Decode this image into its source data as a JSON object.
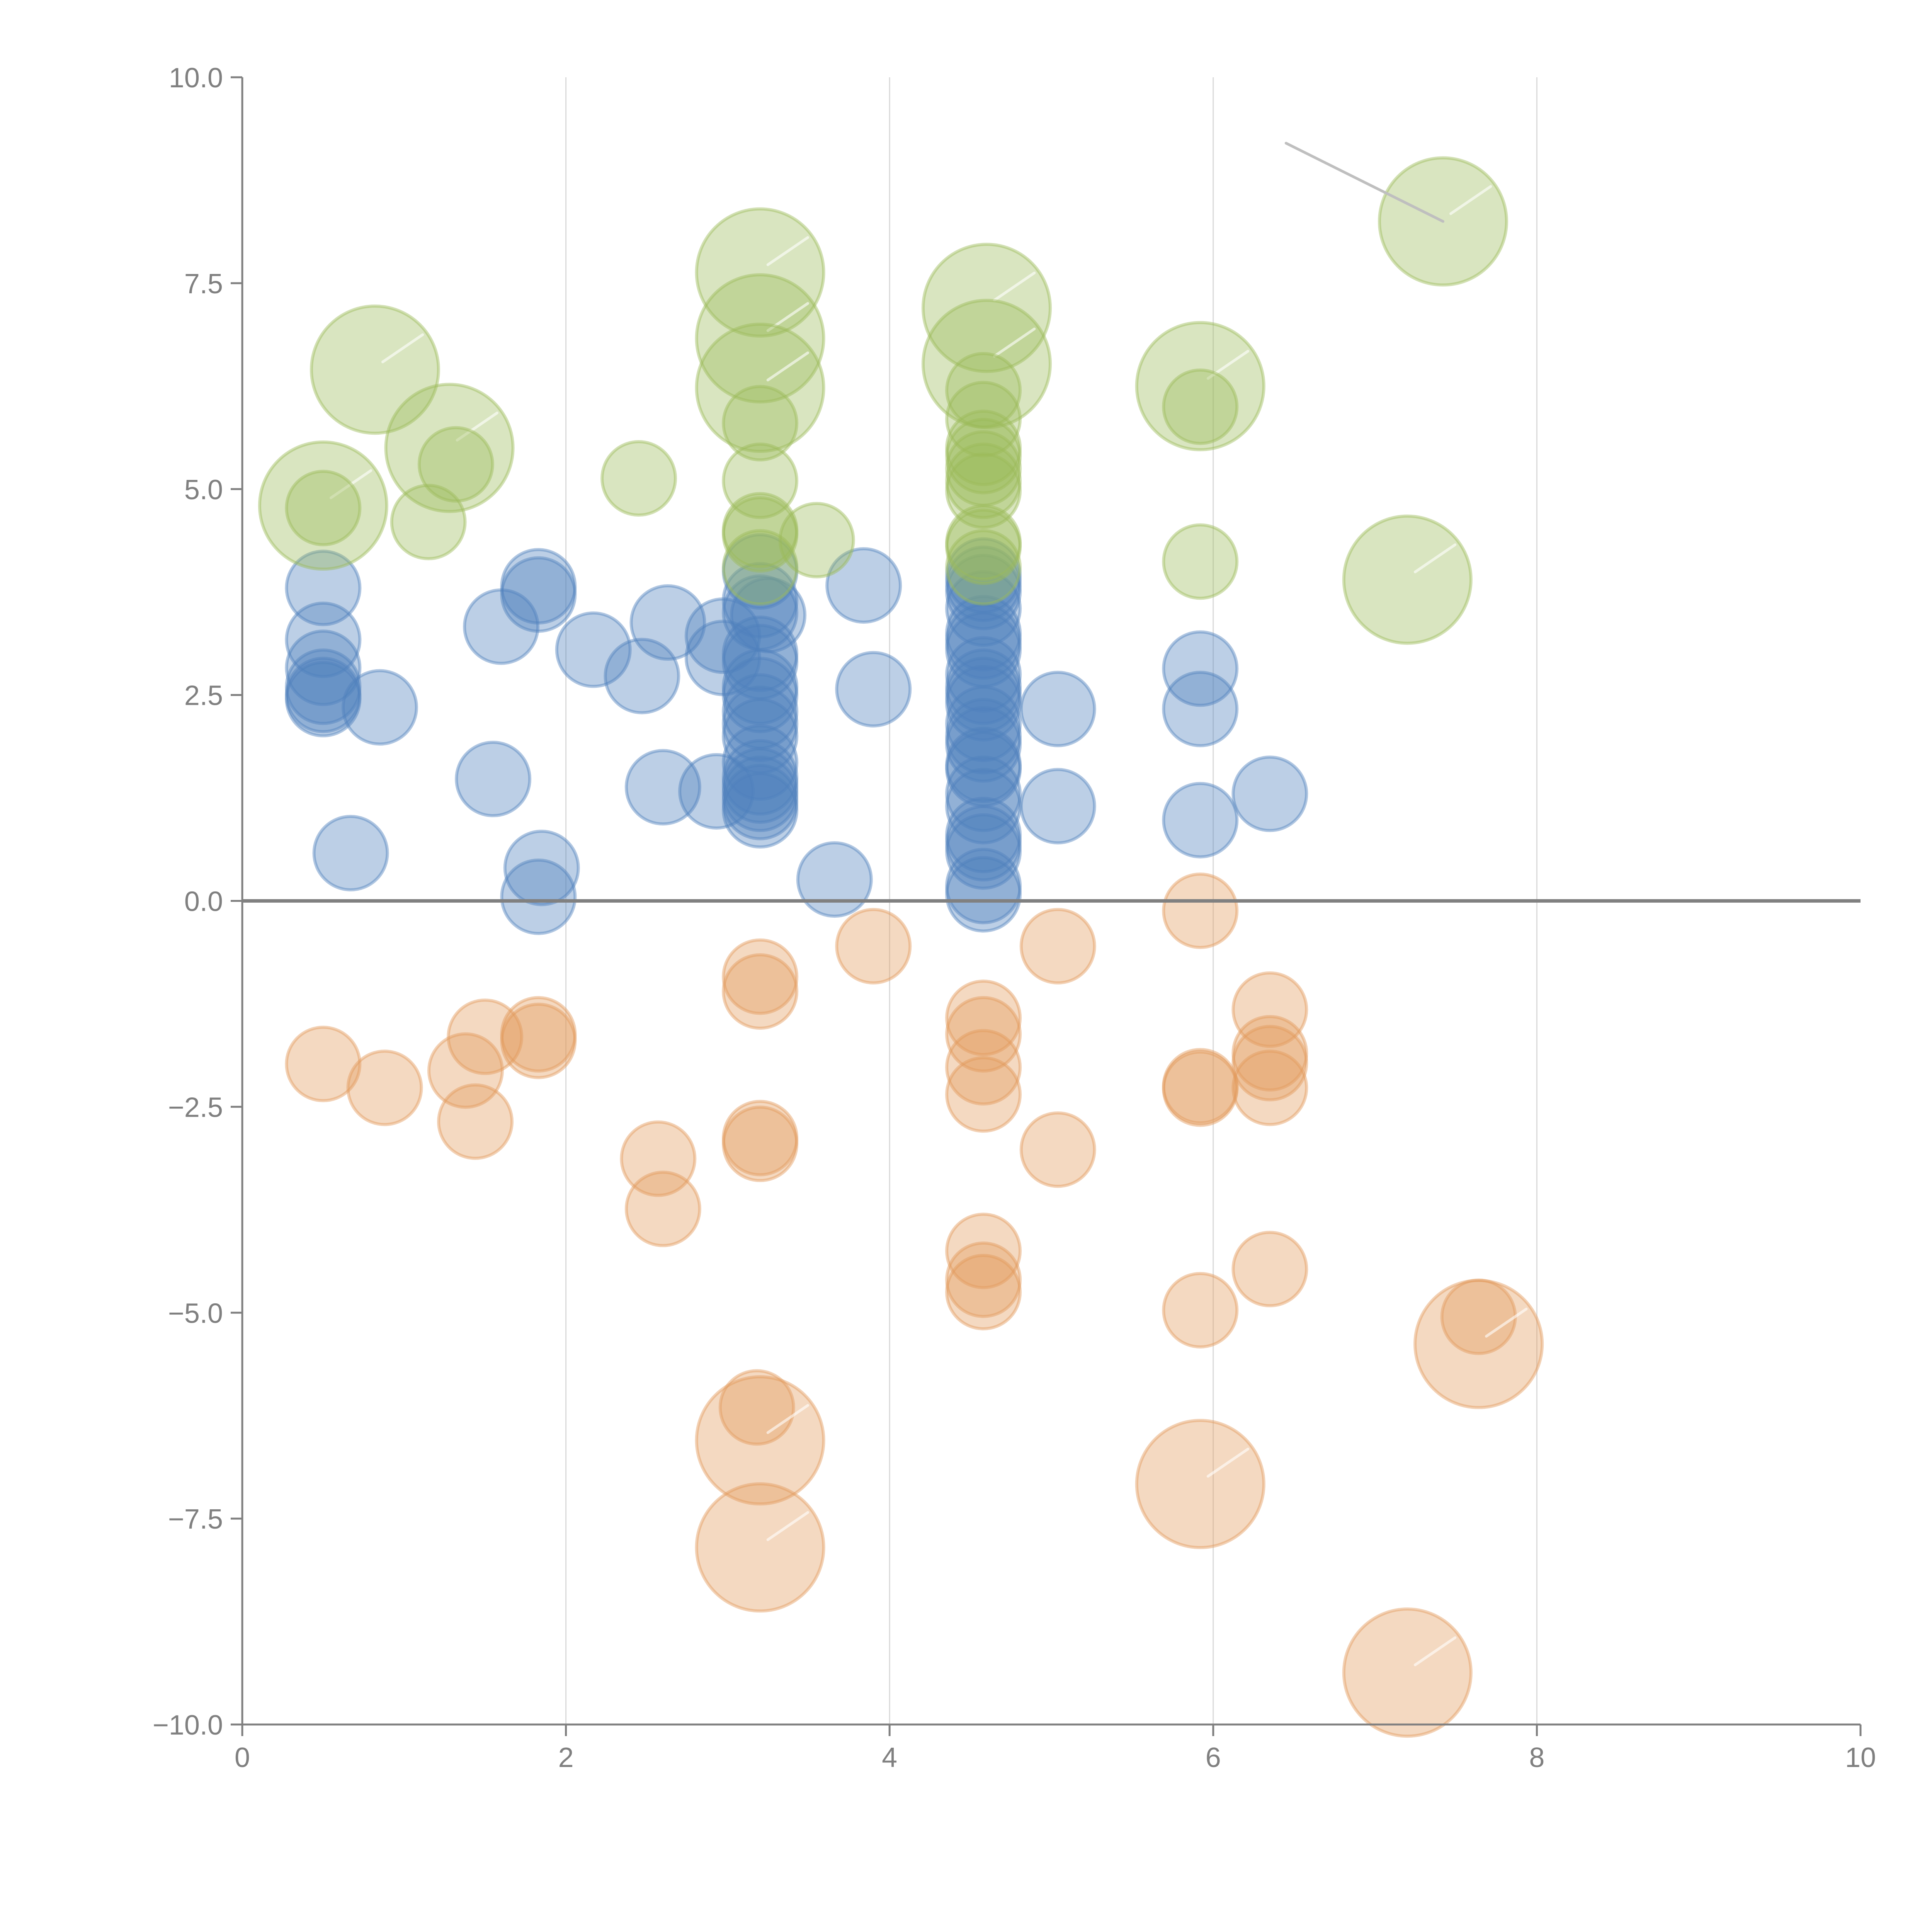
{
  "chart_data": {
    "type": "scatter",
    "subtype": "bubble",
    "title": "",
    "xlabel": "",
    "ylabel": "",
    "xlim": [
      0,
      10
    ],
    "ylim": [
      -10,
      10
    ],
    "x_ticks": [
      "0",
      "2",
      "4",
      "6",
      "8",
      "10"
    ],
    "y_ticks": [
      "10.0",
      "7.5",
      "5.0",
      "2.5",
      "0.0",
      "−2.5",
      "−5.0",
      "−7.5",
      "−10.0"
    ],
    "grid": "vertical",
    "legend": "none",
    "zero_line": true,
    "colors": {
      "blue": "#4f81bd",
      "orange": "#e39a5b",
      "green": "#9bbb59"
    },
    "series": [
      {
        "name": "blue",
        "color": "#4f81bd",
        "points": [
          [
            0.5,
            3.8,
            1
          ],
          [
            0.5,
            3.17,
            1
          ],
          [
            0.5,
            2.83,
            1
          ],
          [
            0.5,
            2.6,
            1
          ],
          [
            0.5,
            2.5,
            1
          ],
          [
            0.5,
            2.45,
            1
          ],
          [
            0.85,
            2.35,
            1
          ],
          [
            0.67,
            0.58,
            1
          ],
          [
            1.55,
            1.48,
            1
          ],
          [
            1.6,
            3.33,
            1
          ],
          [
            1.83,
            3.82,
            1
          ],
          [
            1.83,
            3.72,
            1
          ],
          [
            1.85,
            0.4,
            1
          ],
          [
            1.83,
            0.05,
            1
          ],
          [
            2.17,
            3.05,
            1
          ],
          [
            2.47,
            2.73,
            1
          ],
          [
            2.6,
            1.38,
            1
          ],
          [
            2.63,
            3.38,
            1
          ],
          [
            2.93,
            1.33,
            1
          ],
          [
            2.97,
            3.22,
            1
          ],
          [
            2.97,
            2.95,
            1
          ],
          [
            3.2,
            4.0,
            1
          ],
          [
            3.2,
            3.65,
            1
          ],
          [
            3.2,
            3.5,
            1
          ],
          [
            3.25,
            3.47,
            1
          ],
          [
            3.2,
            3.0,
            1
          ],
          [
            3.2,
            2.9,
            1
          ],
          [
            3.2,
            2.6,
            1
          ],
          [
            3.2,
            2.5,
            1
          ],
          [
            3.2,
            2.3,
            1
          ],
          [
            3.2,
            2.15,
            1
          ],
          [
            3.2,
            2.0,
            1
          ],
          [
            3.2,
            1.68,
            1
          ],
          [
            3.2,
            1.5,
            1
          ],
          [
            3.2,
            1.4,
            1
          ],
          [
            3.2,
            1.3,
            1
          ],
          [
            3.2,
            1.2,
            1
          ],
          [
            3.2,
            1.1,
            1
          ],
          [
            3.66,
            0.26,
            1
          ],
          [
            3.84,
            3.83,
            1
          ],
          [
            3.9,
            2.57,
            1
          ],
          [
            4.58,
            3.95,
            1
          ],
          [
            4.58,
            3.85,
            1
          ],
          [
            4.58,
            3.75,
            1
          ],
          [
            4.58,
            3.55,
            1
          ],
          [
            4.58,
            3.25,
            1
          ],
          [
            4.58,
            3.15,
            1
          ],
          [
            4.58,
            3.05,
            1
          ],
          [
            4.58,
            2.75,
            1
          ],
          [
            4.58,
            2.6,
            1
          ],
          [
            4.58,
            2.5,
            1
          ],
          [
            4.58,
            2.4,
            1
          ],
          [
            4.58,
            2.15,
            1
          ],
          [
            4.58,
            2.0,
            1
          ],
          [
            4.58,
            1.9,
            1
          ],
          [
            4.58,
            1.65,
            1
          ],
          [
            4.58,
            1.6,
            1
          ],
          [
            4.58,
            1.3,
            1
          ],
          [
            4.58,
            1.15,
            1
          ],
          [
            4.58,
            0.8,
            1
          ],
          [
            4.58,
            0.7,
            1
          ],
          [
            4.58,
            0.6,
            1
          ],
          [
            4.58,
            0.18,
            1
          ],
          [
            4.58,
            0.08,
            1
          ],
          [
            5.04,
            2.33,
            1
          ],
          [
            5.04,
            1.15,
            1
          ],
          [
            5.92,
            2.82,
            1
          ],
          [
            5.92,
            2.33,
            1
          ],
          [
            5.92,
            0.98,
            1
          ],
          [
            6.35,
            1.3,
            1
          ]
        ]
      },
      {
        "name": "orange",
        "color": "#e39a5b",
        "points": [
          [
            0.5,
            -1.98,
            1
          ],
          [
            0.88,
            -2.27,
            1
          ],
          [
            1.38,
            -2.06,
            1
          ],
          [
            1.5,
            -1.65,
            1
          ],
          [
            1.44,
            -2.68,
            1
          ],
          [
            1.83,
            -1.62,
            1
          ],
          [
            1.83,
            -1.7,
            1
          ],
          [
            2.57,
            -3.13,
            1
          ],
          [
            2.6,
            -3.74,
            1
          ],
          [
            3.2,
            -0.92,
            1
          ],
          [
            3.2,
            -1.1,
            1
          ],
          [
            3.2,
            -2.88,
            1
          ],
          [
            3.2,
            -2.95,
            1
          ],
          [
            3.18,
            -6.15,
            1
          ],
          [
            3.2,
            -6.55,
            3.0
          ],
          [
            3.2,
            -7.85,
            3.0
          ],
          [
            3.9,
            -0.55,
            1
          ],
          [
            4.58,
            -1.42,
            1
          ],
          [
            4.58,
            -1.62,
            1
          ],
          [
            4.58,
            -2.02,
            1
          ],
          [
            4.58,
            -2.35,
            1
          ],
          [
            4.58,
            -4.25,
            1
          ],
          [
            4.58,
            -4.6,
            1
          ],
          [
            4.58,
            -4.75,
            1
          ],
          [
            5.04,
            -0.55,
            1
          ],
          [
            5.04,
            -3.02,
            1
          ],
          [
            5.92,
            -0.12,
            1
          ],
          [
            5.92,
            -2.25,
            1
          ],
          [
            5.92,
            -2.28,
            1
          ],
          [
            5.92,
            -4.97,
            1
          ],
          [
            5.92,
            -7.08,
            3.0
          ],
          [
            6.35,
            -1.32,
            1
          ],
          [
            6.35,
            -1.85,
            1
          ],
          [
            6.35,
            -1.97,
            1
          ],
          [
            6.35,
            -2.27,
            1
          ],
          [
            6.35,
            -4.47,
            1
          ],
          [
            7.64,
            -5.05,
            1
          ],
          [
            7.64,
            -5.38,
            3.0
          ],
          [
            7.2,
            -9.37,
            3.0
          ]
        ]
      },
      {
        "name": "green",
        "color": "#9bbb59",
        "points": [
          [
            0.5,
            4.8,
            3.0
          ],
          [
            0.5,
            4.77,
            1
          ],
          [
            0.82,
            6.45,
            3.0
          ],
          [
            1.28,
            5.5,
            3.0
          ],
          [
            1.32,
            5.3,
            1
          ],
          [
            1.15,
            4.6,
            1
          ],
          [
            2.45,
            5.13,
            1
          ],
          [
            3.2,
            7.63,
            3.0
          ],
          [
            3.2,
            6.83,
            3.0
          ],
          [
            3.2,
            6.23,
            3.0
          ],
          [
            3.2,
            5.8,
            1
          ],
          [
            3.2,
            5.1,
            1
          ],
          [
            3.2,
            4.5,
            1
          ],
          [
            3.2,
            4.45,
            1
          ],
          [
            3.2,
            4.05,
            1
          ],
          [
            3.55,
            4.38,
            1
          ],
          [
            4.6,
            7.2,
            3.0
          ],
          [
            4.6,
            6.52,
            3.0
          ],
          [
            4.58,
            6.2,
            1
          ],
          [
            4.58,
            5.85,
            1
          ],
          [
            4.58,
            5.5,
            1
          ],
          [
            4.58,
            5.4,
            1
          ],
          [
            4.58,
            5.25,
            1
          ],
          [
            4.58,
            5.1,
            1
          ],
          [
            4.58,
            4.98,
            1
          ],
          [
            4.58,
            4.35,
            1
          ],
          [
            4.58,
            4.3,
            1
          ],
          [
            4.58,
            4.05,
            1
          ],
          [
            5.92,
            6.25,
            3.0
          ],
          [
            5.92,
            6.0,
            1
          ],
          [
            5.92,
            4.12,
            1
          ],
          [
            7.2,
            3.9,
            3.0
          ],
          [
            7.42,
            8.25,
            3.0
          ]
        ]
      }
    ],
    "annotation": {
      "from": [
        6.45,
        9.2
      ],
      "to": [
        7.42,
        8.25
      ],
      "text": ""
    }
  }
}
